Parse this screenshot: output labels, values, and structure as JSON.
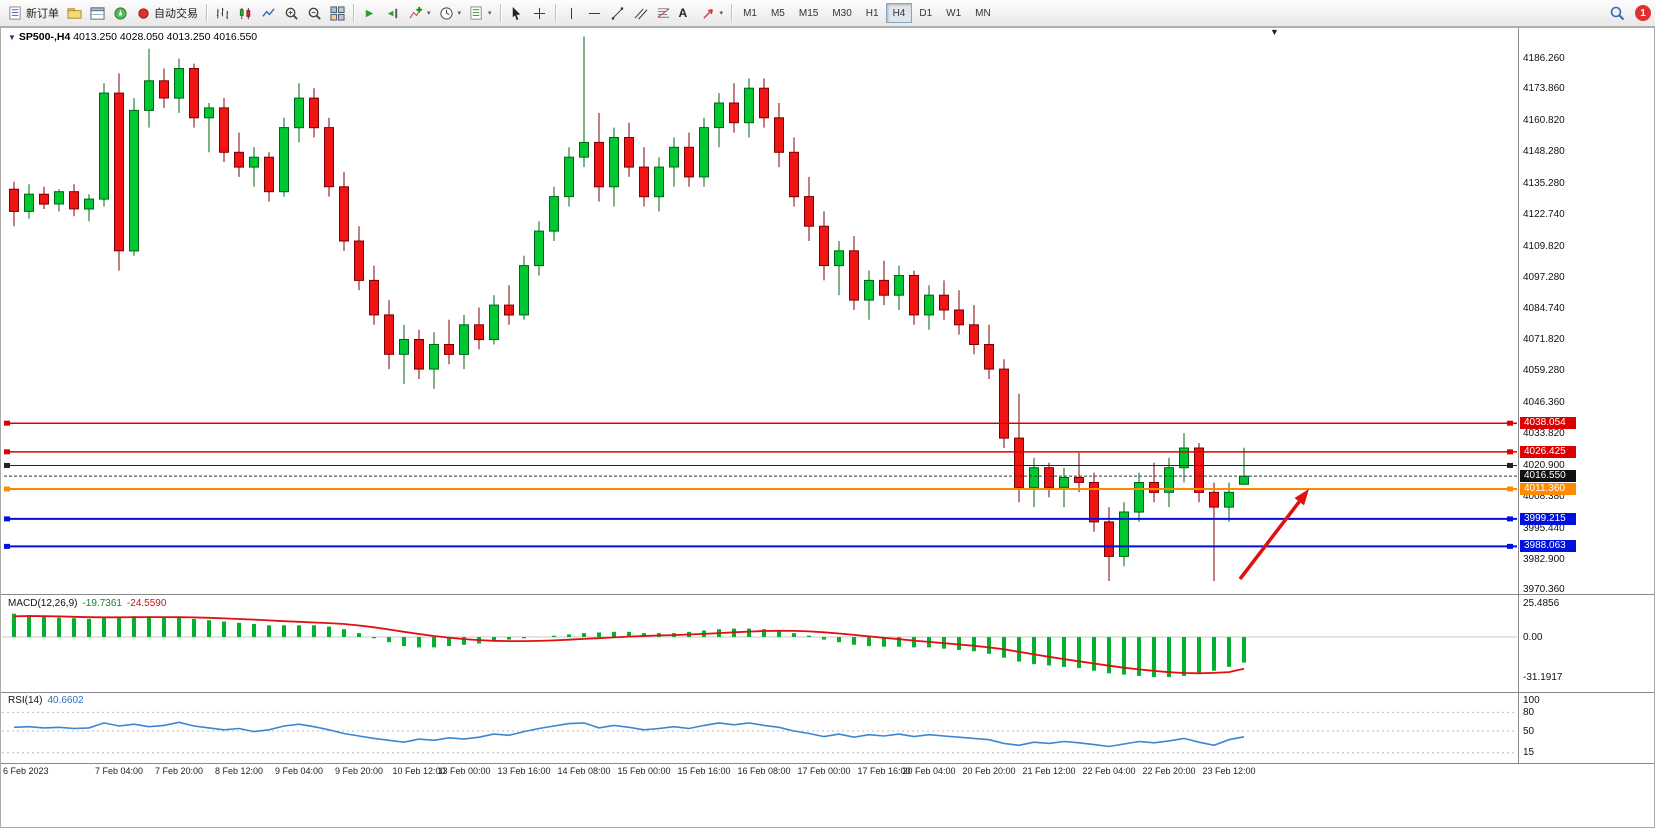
{
  "icons": {
    "caret": "▾",
    "symbol_marker": "▼",
    "collapse": "▼"
  },
  "toolbar": {
    "new_order": "新订单",
    "autotrading": "自动交易",
    "text_tool": "A",
    "timeframes": [
      "M1",
      "M5",
      "M15",
      "M30",
      "H1",
      "H4",
      "D1",
      "W1",
      "MN"
    ],
    "active_timeframe": "H4",
    "badge_count": "1"
  },
  "chart": {
    "symbol": "SP500-,H4",
    "ohlc_text": "4013.250 4028.050 4013.250 4016.550",
    "price_axis_labels": [
      "4186.260",
      "4173.860",
      "4160.820",
      "4148.280",
      "4135.280",
      "4122.740",
      "4109.820",
      "4097.280",
      "4084.740",
      "4071.820",
      "4059.280",
      "4046.360",
      "4033.820",
      "4020.900",
      "4008.380",
      "3995.440",
      "3982.900",
      "3970.360"
    ],
    "time_axis_labels": [
      "6 Feb 2023",
      "7 Feb 04:00",
      "7 Feb 20:00",
      "8 Feb 12:00",
      "9 Feb 04:00",
      "9 Feb 20:00",
      "10 Feb 12:00",
      "13 Feb 00:00",
      "13 Feb 16:00",
      "14 Feb 08:00",
      "15 Feb 00:00",
      "15 Feb 16:00",
      "16 Feb 08:00",
      "17 Feb 00:00",
      "17 Feb 16:00",
      "20 Feb 04:00",
      "20 Feb 20:00",
      "21 Feb 12:00",
      "22 Feb 04:00",
      "22 Feb 20:00",
      "23 Feb 12:00"
    ],
    "levels": [
      {
        "label": "4038.054",
        "price": 4038.054,
        "color": "#dd0000",
        "width": 1.5,
        "dash": "",
        "handles": true
      },
      {
        "label": "4026.425",
        "price": 4026.425,
        "color": "#dd0000",
        "width": 1.5,
        "dash": "",
        "handles": true
      },
      {
        "label": "4020.900",
        "price": 4020.9,
        "color": "#222222",
        "width": 1,
        "dash": "",
        "no_tag": true,
        "handles": true
      },
      {
        "label": "4016.550",
        "price": 4016.55,
        "color": "#333333",
        "width": 1,
        "dash": "3,2",
        "tag_bg": "#111111"
      },
      {
        "label": "4011.360",
        "price": 4011.36,
        "color": "#ff8a00",
        "width": 2,
        "dash": "",
        "handles": true
      },
      {
        "label": "3999.215",
        "price": 3999.215,
        "color": "#0011dd",
        "width": 2,
        "dash": "",
        "handles": true
      },
      {
        "label": "3988.063",
        "price": 3988.063,
        "color": "#0011dd",
        "width": 2,
        "dash": "",
        "handles": true
      }
    ]
  },
  "indicators": {
    "macd": {
      "name": "MACD(12,26,9)",
      "value_main": "-19.7361",
      "value_signal": "-24.5590",
      "scale": [
        "25.4856",
        "0.00",
        "-31.1917"
      ]
    },
    "rsi": {
      "name": "RSI(14)",
      "value": "40.6602",
      "scale": [
        "100",
        "80",
        "50",
        "15"
      ]
    }
  },
  "chart_data": {
    "type": "candlestick",
    "symbol": "SP500-",
    "timeframe": "H4",
    "current_bar_ohlc": [
      4013.25,
      4028.05,
      4013.25,
      4016.55
    ],
    "price_axis_top": 4186.26,
    "price_axis_bottom": 3970.36,
    "candles_ohlc": [
      [
        4133,
        4136,
        4118,
        4124
      ],
      [
        4124,
        4135,
        4121,
        4131
      ],
      [
        4131,
        4134,
        4125,
        4127
      ],
      [
        4127,
        4133,
        4124,
        4132
      ],
      [
        4132,
        4135,
        4122,
        4125
      ],
      [
        4125,
        4131,
        4120,
        4129
      ],
      [
        4129,
        4176,
        4126,
        4172
      ],
      [
        4172,
        4180,
        4100,
        4108
      ],
      [
        4108,
        4170,
        4106,
        4165
      ],
      [
        4165,
        4190,
        4158,
        4177
      ],
      [
        4177,
        4182,
        4166,
        4170
      ],
      [
        4170,
        4186,
        4164,
        4182
      ],
      [
        4182,
        4184,
        4158,
        4162
      ],
      [
        4162,
        4168,
        4148,
        4166
      ],
      [
        4166,
        4170,
        4144,
        4148
      ],
      [
        4148,
        4156,
        4138,
        4142
      ],
      [
        4142,
        4150,
        4134,
        4146
      ],
      [
        4146,
        4148,
        4128,
        4132
      ],
      [
        4132,
        4162,
        4130,
        4158
      ],
      [
        4158,
        4176,
        4152,
        4170
      ],
      [
        4170,
        4174,
        4154,
        4158
      ],
      [
        4158,
        4162,
        4130,
        4134
      ],
      [
        4134,
        4140,
        4108,
        4112
      ],
      [
        4112,
        4118,
        4092,
        4096
      ],
      [
        4096,
        4102,
        4078,
        4082
      ],
      [
        4082,
        4088,
        4060,
        4066
      ],
      [
        4066,
        4078,
        4054,
        4072
      ],
      [
        4072,
        4076,
        4056,
        4060
      ],
      [
        4060,
        4075,
        4052,
        4070
      ],
      [
        4070,
        4080,
        4062,
        4066
      ],
      [
        4066,
        4082,
        4060,
        4078
      ],
      [
        4078,
        4085,
        4068,
        4072
      ],
      [
        4072,
        4090,
        4070,
        4086
      ],
      [
        4086,
        4094,
        4078,
        4082
      ],
      [
        4082,
        4106,
        4080,
        4102
      ],
      [
        4102,
        4120,
        4098,
        4116
      ],
      [
        4116,
        4134,
        4112,
        4130
      ],
      [
        4130,
        4150,
        4126,
        4146
      ],
      [
        4146,
        4195,
        4142,
        4152
      ],
      [
        4152,
        4164,
        4128,
        4134
      ],
      [
        4134,
        4158,
        4126,
        4154
      ],
      [
        4154,
        4160,
        4138,
        4142
      ],
      [
        4142,
        4150,
        4126,
        4130
      ],
      [
        4130,
        4146,
        4124,
        4142
      ],
      [
        4142,
        4154,
        4134,
        4150
      ],
      [
        4150,
        4156,
        4134,
        4138
      ],
      [
        4138,
        4162,
        4134,
        4158
      ],
      [
        4158,
        4172,
        4150,
        4168
      ],
      [
        4168,
        4176,
        4156,
        4160
      ],
      [
        4160,
        4178,
        4154,
        4174
      ],
      [
        4174,
        4178,
        4158,
        4162
      ],
      [
        4162,
        4168,
        4142,
        4148
      ],
      [
        4148,
        4154,
        4126,
        4130
      ],
      [
        4130,
        4138,
        4112,
        4118
      ],
      [
        4118,
        4124,
        4096,
        4102
      ],
      [
        4102,
        4112,
        4090,
        4108
      ],
      [
        4108,
        4114,
        4084,
        4088
      ],
      [
        4088,
        4100,
        4080,
        4096
      ],
      [
        4096,
        4104,
        4086,
        4090
      ],
      [
        4090,
        4102,
        4084,
        4098
      ],
      [
        4098,
        4100,
        4078,
        4082
      ],
      [
        4082,
        4094,
        4076,
        4090
      ],
      [
        4090,
        4096,
        4080,
        4084
      ],
      [
        4084,
        4092,
        4074,
        4078
      ],
      [
        4078,
        4086,
        4066,
        4070
      ],
      [
        4070,
        4078,
        4056,
        4060
      ],
      [
        4060,
        4064,
        4028,
        4032
      ],
      [
        4032,
        4050,
        4006,
        4012
      ],
      [
        4012,
        4024,
        4004,
        4020
      ],
      [
        4020,
        4022,
        4008,
        4012
      ],
      [
        4012,
        4020,
        4004,
        4016
      ],
      [
        4016,
        4026,
        4010,
        4014
      ],
      [
        4014,
        4018,
        3994,
        3998
      ],
      [
        3998,
        4004,
        3974,
        3984
      ],
      [
        3984,
        4006,
        3980,
        4002
      ],
      [
        4002,
        4018,
        3998,
        4014
      ],
      [
        4014,
        4022,
        4006,
        4010
      ],
      [
        4010,
        4024,
        4004,
        4020
      ],
      [
        4020,
        4034,
        4014,
        4028
      ],
      [
        4028,
        4030,
        4006,
        4010
      ],
      [
        4010,
        4014,
        3974,
        4004
      ],
      [
        4004,
        4014,
        3998,
        4010
      ],
      [
        4013.25,
        4028.05,
        4013.25,
        4016.55
      ]
    ],
    "macd_main": [
      18,
      17,
      16,
      15,
      14.5,
      14,
      15,
      15,
      16,
      16,
      15,
      15,
      14,
      13,
      12,
      11,
      10,
      9,
      9,
      9,
      9,
      8,
      6,
      3,
      -1,
      -4,
      -7,
      -8,
      -8,
      -7,
      -6,
      -5,
      -3,
      -2,
      -1,
      0,
      1,
      2,
      3,
      3.5,
      4,
      4,
      3,
      3,
      3,
      4,
      5,
      6,
      6.5,
      6.5,
      6,
      5,
      3,
      1,
      -2,
      -4,
      -6,
      -7,
      -7.5,
      -7.5,
      -8,
      -8,
      -9,
      -10,
      -11,
      -13,
      -16,
      -19,
      -21,
      -22,
      -23,
      -24,
      -26,
      -28,
      -29,
      -30,
      -31,
      -31,
      -30,
      -28,
      -26,
      -23,
      -19.74
    ],
    "macd_signal": [
      16,
      16.2,
      16.1,
      15.9,
      15.6,
      15.3,
      15.2,
      15.2,
      15.3,
      15.4,
      15.4,
      15.3,
      15.1,
      14.8,
      14.4,
      13.9,
      13.4,
      12.8,
      12.2,
      11.7,
      11.2,
      10.7,
      10,
      8.9,
      7.5,
      5.8,
      4,
      2.3,
      0.8,
      -0.5,
      -1.6,
      -2.4,
      -2.9,
      -3.2,
      -3.2,
      -3,
      -2.6,
      -2.1,
      -1.5,
      -0.9,
      -0.3,
      0.3,
      0.8,
      1.2,
      1.5,
      1.9,
      2.4,
      3,
      3.6,
      4.2,
      4.6,
      4.8,
      4.7,
      4.3,
      3.6,
      2.7,
      1.6,
      0.5,
      -0.6,
      -1.7,
      -2.8,
      -3.8,
      -4.8,
      -5.8,
      -6.8,
      -8,
      -9.5,
      -11.4,
      -13.4,
      -15.3,
      -17.1,
      -18.8,
      -20.5,
      -22.2,
      -23.7,
      -25,
      -26.2,
      -27.2,
      -27.8,
      -28,
      -27.7,
      -27.1,
      -24.56
    ],
    "rsi": [
      56,
      57,
      55,
      56,
      54,
      55,
      63,
      58,
      61,
      57,
      59,
      64,
      58,
      55,
      52,
      54,
      49,
      52,
      58,
      61,
      57,
      52,
      46,
      42,
      38,
      35,
      32,
      37,
      35,
      39,
      37,
      40,
      45,
      43,
      49,
      54,
      58,
      62,
      63,
      55,
      59,
      56,
      52,
      54,
      57,
      54,
      59,
      63,
      60,
      63,
      59,
      56,
      50,
      46,
      41,
      45,
      40,
      44,
      42,
      45,
      41,
      44,
      42,
      40,
      38,
      36,
      30,
      27,
      32,
      30,
      33,
      31,
      28,
      25,
      29,
      33,
      31,
      34,
      38,
      32,
      27,
      36,
      40.66
    ],
    "macd_range": [
      25.4856,
      -31.1917
    ],
    "rsi_range": [
      0,
      100
    ],
    "annotation_arrow": {
      "type": "arrow",
      "color": "#e01010",
      "from": [
        1240,
        579
      ],
      "to": [
        1309,
        489
      ]
    }
  }
}
